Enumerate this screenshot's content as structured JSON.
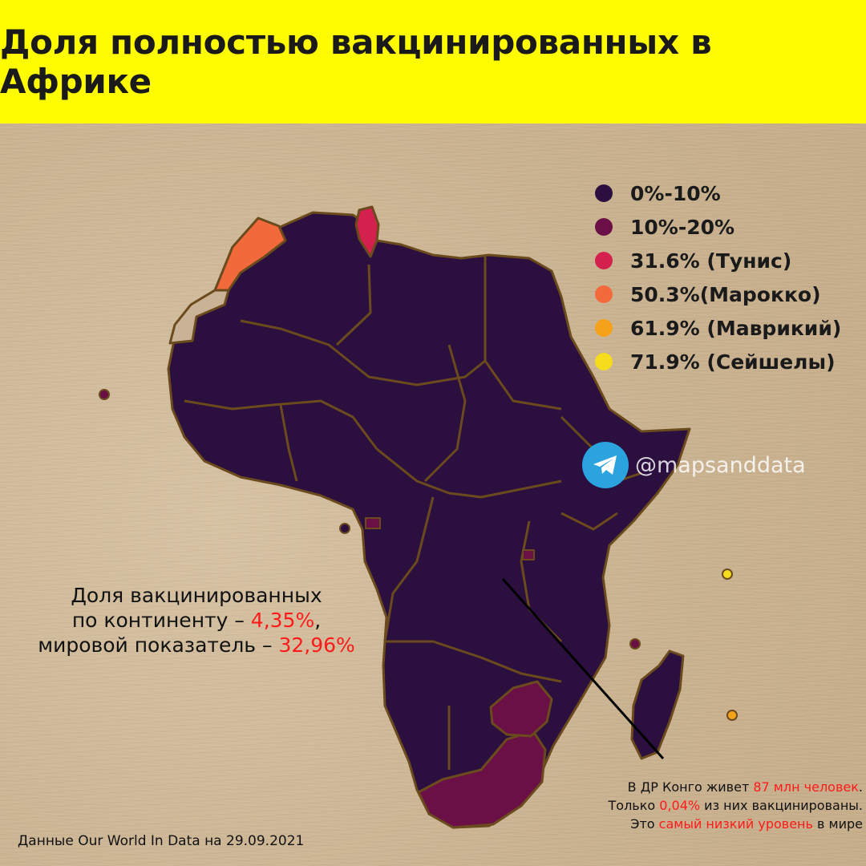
{
  "title": "Доля полностью вакцинированных в Африке",
  "colors": {
    "title_bg": "#fffb00",
    "cat_0_10": "#2a0f3f",
    "cat_10_20": "#6b0f47",
    "tunisia": "#d4204c",
    "morocco": "#f26a3c",
    "mauritius": "#f5a21b",
    "seychelles": "#f5dc1c",
    "highlight": "#ff1a1a",
    "borders": "#6b4a1d"
  },
  "legend": [
    {
      "label": "0%-10%",
      "color": "#2a0f3f"
    },
    {
      "label": "10%-20%",
      "color": "#6b0f47"
    },
    {
      "label": "31.6% (Тунис)",
      "color": "#d4204c"
    },
    {
      "label": "50.3%(Марокко)",
      "color": "#f26a3c"
    },
    {
      "label": "61.9% (Маврикий)",
      "color": "#f5a21b"
    },
    {
      "label": "71.9% (Сейшелы)",
      "color": "#f5dc1c"
    }
  ],
  "social": {
    "handle": "@mapsanddata",
    "icon": "telegram-icon"
  },
  "continent_note": {
    "line1": "Доля вакцинированных",
    "line2_prefix": "по континенту – ",
    "continent_value": "4,35%",
    "line2_suffix": ",",
    "line3_prefix": "мировой показатель – ",
    "world_value": "32,96%"
  },
  "drc_note": {
    "p1": "В ДР Конго живет ",
    "p1_red": "87 млн человек",
    "p1_end": ".",
    "p2": "Только ",
    "p2_red": "0,04%",
    "p2_end": " из них вакцинированы.",
    "p3": "Это ",
    "p3_red": "самый низкий уровень",
    "p3_end": " в мире"
  },
  "source": "Данные Our World In Data на 29.09.2021"
}
